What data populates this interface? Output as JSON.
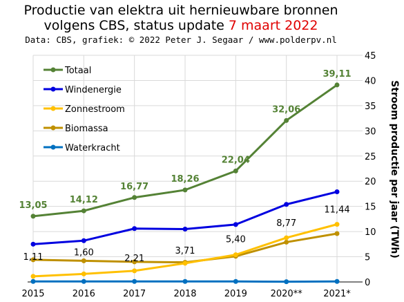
{
  "chart_data": {
    "type": "line",
    "title_main": "Productie van elektra uit hernieuwbare bronnen",
    "title_line2": "volgens CBS, status update ",
    "title_date": "7 maart 2022",
    "subtitle": "Data: CBS, grafiek: © 2022 Peter J. Segaar / www.polderpv.nl",
    "ylabel": "Stroom productie per jaar (TWh)",
    "ylim": [
      0,
      45
    ],
    "yticks": [
      "0",
      "5",
      "10",
      "15",
      "20",
      "25",
      "30",
      "35",
      "40",
      "45"
    ],
    "categories": [
      "2015",
      "2016",
      "2017",
      "2018",
      "2019",
      "2020**",
      "2021*"
    ],
    "grid": true,
    "legend_position": "top-left",
    "series": [
      {
        "name": "Totaal",
        "color": "#548235",
        "values": [
          13.05,
          14.12,
          16.77,
          18.26,
          22.04,
          32.06,
          39.11
        ],
        "labels": [
          "13,05",
          "14,12",
          "16,77",
          "18,26",
          "22,04",
          "32,06",
          "39,11"
        ]
      },
      {
        "name": "Windenergie",
        "color": "#0000e0",
        "values": [
          7.5,
          8.2,
          10.6,
          10.5,
          11.4,
          15.4,
          17.9
        ]
      },
      {
        "name": "Zonnestroom",
        "color": "#ffc000",
        "values": [
          1.11,
          1.6,
          2.21,
          3.71,
          5.4,
          8.77,
          11.44
        ],
        "labels": [
          "1,11",
          "1,60",
          "2,21",
          "3,71",
          "5,40",
          "8,77",
          "11,44"
        ]
      },
      {
        "name": "Biomassa",
        "color": "#bf9000",
        "values": [
          4.4,
          4.2,
          4.0,
          3.9,
          5.1,
          7.9,
          9.6
        ]
      },
      {
        "name": "Waterkracht",
        "color": "#0070c0",
        "values": [
          0.1,
          0.1,
          0.1,
          0.1,
          0.1,
          0.05,
          0.1
        ]
      }
    ]
  }
}
